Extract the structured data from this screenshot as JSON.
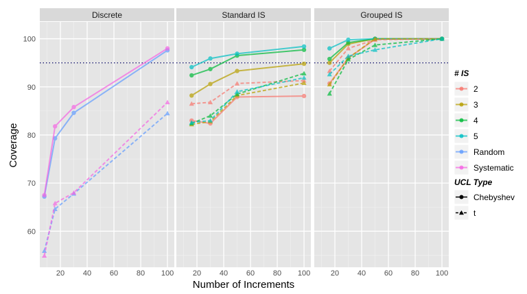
{
  "chart_data": {
    "type": "line",
    "xlabel": "Number of Increments",
    "ylabel": "Coverage",
    "ylim": [
      52.5,
      103.5
    ],
    "xlim": [
      4.6,
      105.1
    ],
    "yticks": [
      60,
      70,
      80,
      90,
      100
    ],
    "xticks": [
      20,
      40,
      60,
      80,
      100
    ],
    "grid": true,
    "reference_line": {
      "y": 95,
      "color": "#1a1a6e",
      "style": "dotted"
    },
    "legend_position": "right",
    "color_legend": {
      "title": "# IS",
      "entries": [
        {
          "label": "2",
          "color": "#F8766D"
        },
        {
          "label": "3",
          "color": "#B79F00"
        },
        {
          "label": "4",
          "color": "#00BA38"
        },
        {
          "label": "5",
          "color": "#00BFC4"
        },
        {
          "label": "Random",
          "color": "#619CFF"
        },
        {
          "label": "Systematic",
          "color": "#F564E3"
        }
      ]
    },
    "linetype_legend": {
      "title": "UCL Type",
      "entries": [
        {
          "label": "Chebyshev",
          "style": "solid",
          "shape": "circle"
        },
        {
          "label": "t",
          "style": "dashed",
          "shape": "triangle"
        }
      ]
    },
    "panels": [
      {
        "title": "Discrete",
        "series": [
          {
            "is": "Random",
            "ucl": "Chebyshev",
            "x": [
              8,
              16,
              30,
              100
            ],
            "y": [
              67.2,
              79.3,
              84.6,
              97.6
            ]
          },
          {
            "is": "Systematic",
            "ucl": "Chebyshev",
            "x": [
              8,
              16,
              30,
              100
            ],
            "y": [
              67.5,
              81.8,
              85.8,
              98.0
            ]
          },
          {
            "is": "Random",
            "ucl": "t",
            "x": [
              8,
              16,
              30,
              100
            ],
            "y": [
              55.9,
              64.6,
              67.8,
              84.5
            ]
          },
          {
            "is": "Systematic",
            "ucl": "t",
            "x": [
              8,
              16,
              30,
              100
            ],
            "y": [
              54.9,
              65.8,
              68.0,
              86.8
            ]
          }
        ]
      },
      {
        "title": "Standard IS",
        "series": [
          {
            "is": "2",
            "ucl": "Chebyshev",
            "x": [
              16,
              30,
              50,
              100
            ],
            "y": [
              83.0,
              82.4,
              87.9,
              88.1
            ]
          },
          {
            "is": "3",
            "ucl": "Chebyshev",
            "x": [
              16,
              30,
              50,
              100
            ],
            "y": [
              88.2,
              90.6,
              93.3,
              94.8
            ]
          },
          {
            "is": "4",
            "ucl": "Chebyshev",
            "x": [
              16,
              30,
              50,
              100
            ],
            "y": [
              92.4,
              93.7,
              96.5,
              97.7
            ]
          },
          {
            "is": "5",
            "ucl": "Chebyshev",
            "x": [
              16,
              30,
              50,
              100
            ],
            "y": [
              94.1,
              95.9,
              96.9,
              98.4
            ]
          },
          {
            "is": "2",
            "ucl": "t",
            "x": [
              16,
              30,
              50,
              100
            ],
            "y": [
              86.5,
              86.8,
              90.7,
              91.3
            ]
          },
          {
            "is": "3",
            "ucl": "t",
            "x": [
              16,
              30,
              50,
              100
            ],
            "y": [
              82.2,
              82.8,
              88.2,
              90.8
            ]
          },
          {
            "is": "4",
            "ucl": "t",
            "x": [
              16,
              30,
              50,
              100
            ],
            "y": [
              82.4,
              84.0,
              88.5,
              92.8
            ]
          },
          {
            "is": "5",
            "ucl": "t",
            "x": [
              16,
              30,
              50,
              100
            ],
            "y": [
              82.6,
              83.0,
              89.0,
              91.9
            ]
          }
        ]
      },
      {
        "title": "Grouped IS",
        "series": [
          {
            "is": "2",
            "ucl": "Chebyshev",
            "x": [
              16,
              30,
              50,
              100
            ],
            "y": [
              90.7,
              96.0,
              99.9,
              100
            ]
          },
          {
            "is": "3",
            "ucl": "Chebyshev",
            "x": [
              16,
              30,
              50,
              100
            ],
            "y": [
              95.0,
              98.9,
              100,
              100
            ]
          },
          {
            "is": "4",
            "ucl": "Chebyshev",
            "x": [
              16,
              30,
              50,
              100
            ],
            "y": [
              95.8,
              99.2,
              100,
              100
            ]
          },
          {
            "is": "5",
            "ucl": "Chebyshev",
            "x": [
              16,
              30,
              50,
              100
            ],
            "y": [
              98.0,
              99.8,
              100,
              100
            ]
          },
          {
            "is": "2",
            "ucl": "t",
            "x": [
              16,
              30,
              50,
              100
            ],
            "y": [
              93.3,
              98.0,
              99.8,
              100
            ]
          },
          {
            "is": "3",
            "ucl": "t",
            "x": [
              16,
              30,
              50,
              100
            ],
            "y": [
              90.5,
              96.0,
              100,
              100
            ]
          },
          {
            "is": "4",
            "ucl": "t",
            "x": [
              16,
              30,
              50,
              100
            ],
            "y": [
              88.6,
              95.7,
              98.7,
              100
            ]
          },
          {
            "is": "5",
            "ucl": "t",
            "x": [
              16,
              30,
              50,
              100
            ],
            "y": [
              92.6,
              96.4,
              97.7,
              100
            ]
          }
        ]
      }
    ]
  }
}
